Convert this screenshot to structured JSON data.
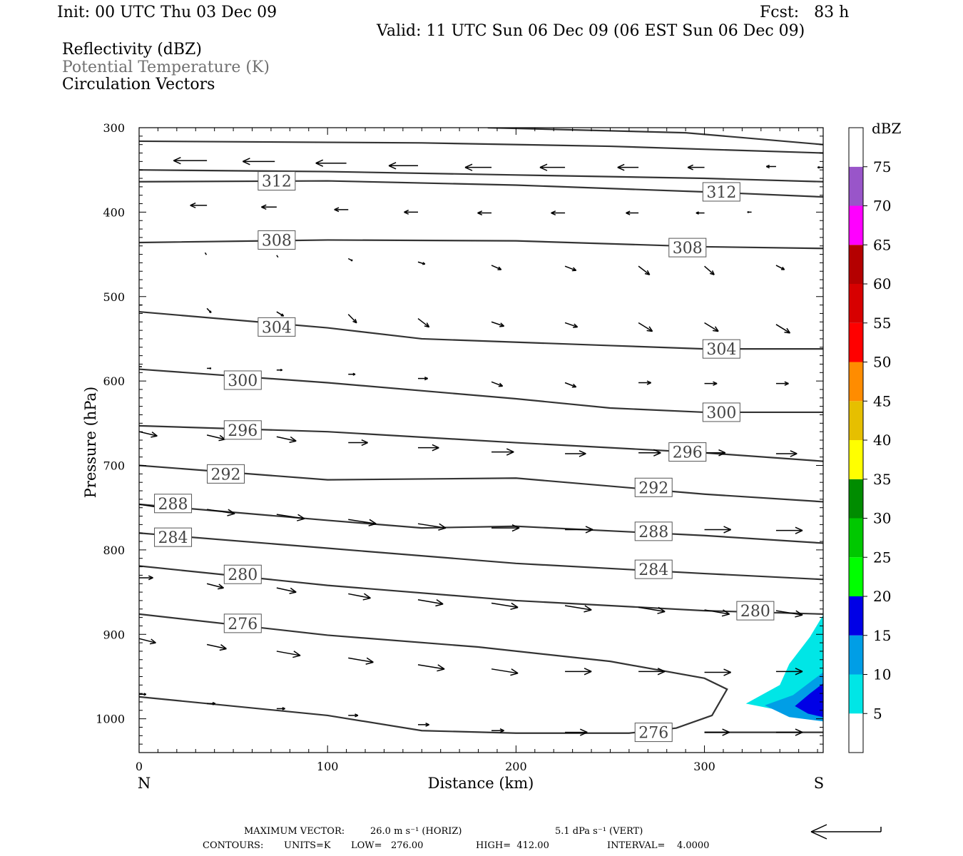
{
  "header": {
    "init": "Init: 00 UTC Thu 03 Dec 09",
    "fcst": "Fcst:   83 h",
    "valid": "Valid: 11 UTC Sun 06 Dec 09 (06 EST Sun 06 Dec 09)",
    "fields": [
      {
        "label": "Reflectivity (dBZ)",
        "color": "#000000"
      },
      {
        "label": "Potential Temperature (K)",
        "color": "#707070"
      },
      {
        "label": "Circulation Vectors",
        "color": "#000000"
      }
    ]
  },
  "footer": {
    "max_vector_label": "MAXIMUM VECTOR:",
    "max_vector_horiz": "26.0 m s⁻¹ (HORIZ)",
    "max_vector_vert": "5.1 dPa s⁻¹ (VERT)",
    "contours_label": "CONTOURS:",
    "contours_units": "UNITS=K",
    "contours_low": "LOW=   276.00",
    "contours_high": "HIGH=  412.00",
    "contours_interval": "INTERVAL=    4.0000"
  },
  "chart_data": {
    "type": "cross-section",
    "xlabel": "Distance (km)",
    "ylabel": "Pressure (hPa)",
    "xlim": [
      0,
      363
    ],
    "ylim": [
      300,
      1040
    ],
    "x_ticks": [
      0,
      100,
      200,
      300
    ],
    "y_ticks": [
      300,
      400,
      500,
      600,
      700,
      800,
      900,
      1000
    ],
    "x_end_labels": {
      "left": "N",
      "right": "S"
    },
    "grid": false,
    "contour_color": "#333333",
    "vector_color": "#000000",
    "isentropes": [
      {
        "theta": 316,
        "points": [
          [
            185,
            300
          ],
          [
            290,
            306
          ],
          [
            363,
            320
          ]
        ]
      },
      {
        "theta": 316,
        "points": [
          [
            0,
            316
          ],
          [
            150,
            318
          ],
          [
            250,
            322
          ],
          [
            363,
            330
          ]
        ]
      },
      {
        "theta": 312,
        "points": [
          [
            0,
            350
          ],
          [
            100,
            352
          ],
          [
            200,
            356
          ],
          [
            300,
            360
          ],
          [
            363,
            364
          ]
        ]
      },
      {
        "theta": 312,
        "points": [
          [
            0,
            364
          ],
          [
            100,
            363
          ],
          [
            200,
            368
          ],
          [
            300,
            376
          ],
          [
            363,
            382
          ]
        ]
      },
      {
        "theta": 308,
        "points": [
          [
            0,
            436
          ],
          [
            100,
            433
          ],
          [
            200,
            434
          ],
          [
            300,
            441
          ],
          [
            363,
            443
          ]
        ]
      },
      {
        "theta": 304,
        "points": [
          [
            0,
            518
          ],
          [
            100,
            537
          ],
          [
            150,
            550
          ],
          [
            250,
            558
          ],
          [
            300,
            562
          ],
          [
            363,
            562
          ]
        ]
      },
      {
        "theta": 300,
        "points": [
          [
            0,
            586
          ],
          [
            100,
            602
          ],
          [
            200,
            621
          ],
          [
            250,
            632
          ],
          [
            300,
            637
          ],
          [
            363,
            637
          ]
        ]
      },
      {
        "theta": 296,
        "points": [
          [
            0,
            653
          ],
          [
            100,
            660
          ],
          [
            200,
            673
          ],
          [
            300,
            685
          ],
          [
            363,
            695
          ]
        ]
      },
      {
        "theta": 292,
        "points": [
          [
            0,
            700
          ],
          [
            100,
            717
          ],
          [
            200,
            715
          ],
          [
            300,
            734
          ],
          [
            363,
            743
          ]
        ]
      },
      {
        "theta": 288,
        "points": [
          [
            0,
            746
          ],
          [
            100,
            765
          ],
          [
            150,
            774
          ],
          [
            200,
            772
          ],
          [
            300,
            783
          ],
          [
            363,
            792
          ]
        ]
      },
      {
        "theta": 284,
        "points": [
          [
            0,
            780
          ],
          [
            100,
            798
          ],
          [
            200,
            816
          ],
          [
            300,
            828
          ],
          [
            363,
            835
          ]
        ]
      },
      {
        "theta": 280,
        "points": [
          [
            0,
            819
          ],
          [
            100,
            842
          ],
          [
            200,
            860
          ],
          [
            300,
            872
          ],
          [
            363,
            876
          ]
        ]
      },
      {
        "theta": 276,
        "points": [
          [
            0,
            876
          ],
          [
            100,
            901
          ],
          [
            180,
            915
          ],
          [
            250,
            932
          ],
          [
            300,
            952
          ],
          [
            312,
            965
          ],
          [
            304,
            996
          ],
          [
            285,
            1011
          ],
          [
            260,
            1017
          ],
          [
            200,
            1017
          ],
          [
            150,
            1014
          ],
          [
            100,
            996
          ],
          [
            0,
            974
          ]
        ]
      },
      {
        "theta": 276,
        "points": [
          [
            300,
            1016
          ],
          [
            363,
            1016
          ]
        ]
      }
    ],
    "contour_labels": [
      {
        "text": "312",
        "x": 73,
        "p": 363
      },
      {
        "text": "312",
        "x": 309,
        "p": 376
      },
      {
        "text": "308",
        "x": 73,
        "p": 433
      },
      {
        "text": "308",
        "x": 291,
        "p": 442
      },
      {
        "text": "304",
        "x": 73,
        "p": 536
      },
      {
        "text": "304",
        "x": 309,
        "p": 562
      },
      {
        "text": "300",
        "x": 55,
        "p": 599
      },
      {
        "text": "300",
        "x": 309,
        "p": 637
      },
      {
        "text": "296",
        "x": 55,
        "p": 658
      },
      {
        "text": "296",
        "x": 291,
        "p": 684
      },
      {
        "text": "292",
        "x": 46,
        "p": 710
      },
      {
        "text": "292",
        "x": 273,
        "p": 726
      },
      {
        "text": "288",
        "x": 18,
        "p": 745
      },
      {
        "text": "288",
        "x": 273,
        "p": 778
      },
      {
        "text": "284",
        "x": 18,
        "p": 785
      },
      {
        "text": "284",
        "x": 273,
        "p": 823
      },
      {
        "text": "280",
        "x": 55,
        "p": 829
      },
      {
        "text": "280",
        "x": 327,
        "p": 872
      },
      {
        "text": "276",
        "x": 55,
        "p": 887
      },
      {
        "text": "276",
        "x": 273,
        "p": 1016
      }
    ],
    "reflectivity_scale": {
      "label": "dBZ",
      "levels": [
        5,
        10,
        15,
        20,
        25,
        30,
        35,
        40,
        45,
        50,
        55,
        60,
        65,
        70,
        75
      ],
      "colors": [
        "#ffffff",
        "#00e6e6",
        "#009ee6",
        "#0000e6",
        "#00ff00",
        "#00c800",
        "#008c00",
        "#ffff00",
        "#e6bf00",
        "#ff8c00",
        "#ff0000",
        "#d70000",
        "#b40000",
        "#ff00ff",
        "#9955c9",
        "#ffffff"
      ]
    },
    "reflectivity_areas": [
      {
        "dbz": 5,
        "color": "#00e6e6",
        "points": [
          [
            322,
            982
          ],
          [
            340,
            960
          ],
          [
            345,
            935
          ],
          [
            356,
            903
          ],
          [
            363,
            877
          ],
          [
            363,
            1000
          ],
          [
            340,
            990
          ]
        ]
      },
      {
        "dbz": 10,
        "color": "#009ee6",
        "points": [
          [
            332,
            984
          ],
          [
            347,
            972
          ],
          [
            357,
            955
          ],
          [
            363,
            945
          ],
          [
            363,
            1003
          ],
          [
            345,
            998
          ]
        ]
      },
      {
        "dbz": 15,
        "color": "#0000e6",
        "points": [
          [
            348,
            985
          ],
          [
            356,
            970
          ],
          [
            363,
            958
          ],
          [
            363,
            998
          ],
          [
            355,
            994
          ]
        ]
      }
    ],
    "vectors": [
      {
        "x": 36,
        "p": 339,
        "u": -24
      },
      {
        "x": 72,
        "p": 340,
        "u": -23
      },
      {
        "x": 110,
        "p": 342,
        "u": -22
      },
      {
        "x": 148,
        "p": 345,
        "u": -21
      },
      {
        "x": 187,
        "p": 347,
        "u": -19
      },
      {
        "x": 226,
        "p": 347,
        "u": -18
      },
      {
        "x": 265,
        "p": 347,
        "u": -15
      },
      {
        "x": 300,
        "p": 347,
        "u": -12
      },
      {
        "x": 338,
        "p": 346,
        "u": -7
      },
      {
        "x": 363,
        "p": 347,
        "u": -4
      },
      {
        "x": 36,
        "p": 392,
        "u": -12
      },
      {
        "x": 73,
        "p": 394,
        "u": -11
      },
      {
        "x": 111,
        "p": 397,
        "u": -10
      },
      {
        "x": 148,
        "p": 400,
        "u": -10
      },
      {
        "x": 187,
        "p": 401,
        "u": -10
      },
      {
        "x": 226,
        "p": 401,
        "u": -10
      },
      {
        "x": 265,
        "p": 401,
        "u": -9
      },
      {
        "x": 300,
        "p": 401,
        "u": -6
      },
      {
        "x": 325,
        "p": 400,
        "u": -3
      },
      {
        "x": 35,
        "p": 448,
        "u": 1,
        "v": 0.5
      },
      {
        "x": 73,
        "p": 451,
        "u": 1,
        "v": 0.5
      },
      {
        "x": 111,
        "p": 455,
        "u": 3,
        "v": 0.5
      },
      {
        "x": 148,
        "p": 459,
        "u": 5,
        "v": 0.5
      },
      {
        "x": 187,
        "p": 463,
        "u": 7,
        "v": 1
      },
      {
        "x": 226,
        "p": 464,
        "u": 8,
        "v": 1
      },
      {
        "x": 265,
        "p": 464,
        "u": 8,
        "v": 2
      },
      {
        "x": 300,
        "p": 464,
        "u": 7,
        "v": 2
      },
      {
        "x": 338,
        "p": 463,
        "u": 6,
        "v": 1
      },
      {
        "x": 0,
        "p": 510,
        "u": 2
      },
      {
        "x": 36,
        "p": 514,
        "u": 3,
        "v": 1
      },
      {
        "x": 73,
        "p": 518,
        "u": 5,
        "v": 1
      },
      {
        "x": 111,
        "p": 521,
        "u": 6,
        "v": 2
      },
      {
        "x": 148,
        "p": 526,
        "u": 8,
        "v": 2
      },
      {
        "x": 187,
        "p": 530,
        "u": 9,
        "v": 1
      },
      {
        "x": 226,
        "p": 531,
        "u": 9,
        "v": 1
      },
      {
        "x": 265,
        "p": 531,
        "u": 10,
        "v": 2
      },
      {
        "x": 300,
        "p": 531,
        "u": 10,
        "v": 2
      },
      {
        "x": 338,
        "p": 533,
        "u": 10,
        "v": 2
      },
      {
        "x": 0,
        "p": 583,
        "u": 2
      },
      {
        "x": 36,
        "p": 585,
        "u": 3
      },
      {
        "x": 73,
        "p": 587,
        "u": 4
      },
      {
        "x": 111,
        "p": 592,
        "u": 5
      },
      {
        "x": 148,
        "p": 597,
        "u": 7
      },
      {
        "x": 187,
        "p": 601,
        "u": 8,
        "v": 1
      },
      {
        "x": 226,
        "p": 602,
        "u": 8,
        "v": 1
      },
      {
        "x": 265,
        "p": 602,
        "u": 9
      },
      {
        "x": 300,
        "p": 603,
        "u": 9
      },
      {
        "x": 338,
        "p": 603,
        "u": 9
      },
      {
        "x": 0,
        "p": 660,
        "u": 13,
        "v": 1
      },
      {
        "x": 36,
        "p": 664,
        "u": 13,
        "v": 1
      },
      {
        "x": 73,
        "p": 666,
        "u": 14,
        "v": 1
      },
      {
        "x": 111,
        "p": 673,
        "u": 14
      },
      {
        "x": 148,
        "p": 679,
        "u": 15
      },
      {
        "x": 187,
        "p": 684,
        "u": 16
      },
      {
        "x": 226,
        "p": 686,
        "u": 15
      },
      {
        "x": 265,
        "p": 685,
        "u": 16
      },
      {
        "x": 300,
        "p": 685,
        "u": 15
      },
      {
        "x": 338,
        "p": 686,
        "u": 15
      },
      {
        "x": 0,
        "p": 746,
        "u": 20,
        "v": 1
      },
      {
        "x": 36,
        "p": 752,
        "u": 20,
        "v": 1
      },
      {
        "x": 73,
        "p": 758,
        "u": 20,
        "v": 1
      },
      {
        "x": 111,
        "p": 764,
        "u": 20,
        "v": 1
      },
      {
        "x": 148,
        "p": 769,
        "u": 20,
        "v": 1
      },
      {
        "x": 187,
        "p": 774,
        "u": 20
      },
      {
        "x": 226,
        "p": 776,
        "u": 20
      },
      {
        "x": 265,
        "p": 777,
        "u": 20
      },
      {
        "x": 300,
        "p": 776,
        "u": 19
      },
      {
        "x": 338,
        "p": 777,
        "u": 19
      },
      {
        "x": 0,
        "p": 833,
        "u": 10
      },
      {
        "x": 36,
        "p": 840,
        "u": 12,
        "v": 1
      },
      {
        "x": 73,
        "p": 845,
        "u": 14,
        "v": 1
      },
      {
        "x": 111,
        "p": 852,
        "u": 16,
        "v": 1
      },
      {
        "x": 148,
        "p": 859,
        "u": 18,
        "v": 1
      },
      {
        "x": 187,
        "p": 863,
        "u": 19,
        "v": 1
      },
      {
        "x": 226,
        "p": 866,
        "u": 19,
        "v": 1
      },
      {
        "x": 265,
        "p": 868,
        "u": 19,
        "v": 1
      },
      {
        "x": 300,
        "p": 871,
        "u": 18,
        "v": 1
      },
      {
        "x": 338,
        "p": 872,
        "u": 19,
        "v": 1
      },
      {
        "x": 0,
        "p": 905,
        "u": 12,
        "v": 1
      },
      {
        "x": 36,
        "p": 912,
        "u": 14,
        "v": 1
      },
      {
        "x": 73,
        "p": 920,
        "u": 17,
        "v": 1
      },
      {
        "x": 111,
        "p": 928,
        "u": 18,
        "v": 1
      },
      {
        "x": 148,
        "p": 936,
        "u": 19,
        "v": 1
      },
      {
        "x": 187,
        "p": 941,
        "u": 19,
        "v": 1
      },
      {
        "x": 226,
        "p": 944,
        "u": 19
      },
      {
        "x": 265,
        "p": 944,
        "u": 19
      },
      {
        "x": 300,
        "p": 945,
        "u": 19
      },
      {
        "x": 338,
        "p": 944,
        "u": 19
      },
      {
        "x": 0,
        "p": 971,
        "u": 5
      },
      {
        "x": 36,
        "p": 982,
        "u": 6
      },
      {
        "x": 73,
        "p": 988,
        "u": 6
      },
      {
        "x": 111,
        "p": 996,
        "u": 7
      },
      {
        "x": 148,
        "p": 1007,
        "u": 8
      },
      {
        "x": 187,
        "p": 1014,
        "u": 9
      },
      {
        "x": 226,
        "p": 1016,
        "u": 16
      },
      {
        "x": 265,
        "p": 1016,
        "u": 18
      },
      {
        "x": 300,
        "p": 1016,
        "u": 18
      },
      {
        "x": 338,
        "p": 1016,
        "u": 19
      }
    ],
    "reference_vector": {
      "u": -26,
      "v": 5.1
    }
  }
}
